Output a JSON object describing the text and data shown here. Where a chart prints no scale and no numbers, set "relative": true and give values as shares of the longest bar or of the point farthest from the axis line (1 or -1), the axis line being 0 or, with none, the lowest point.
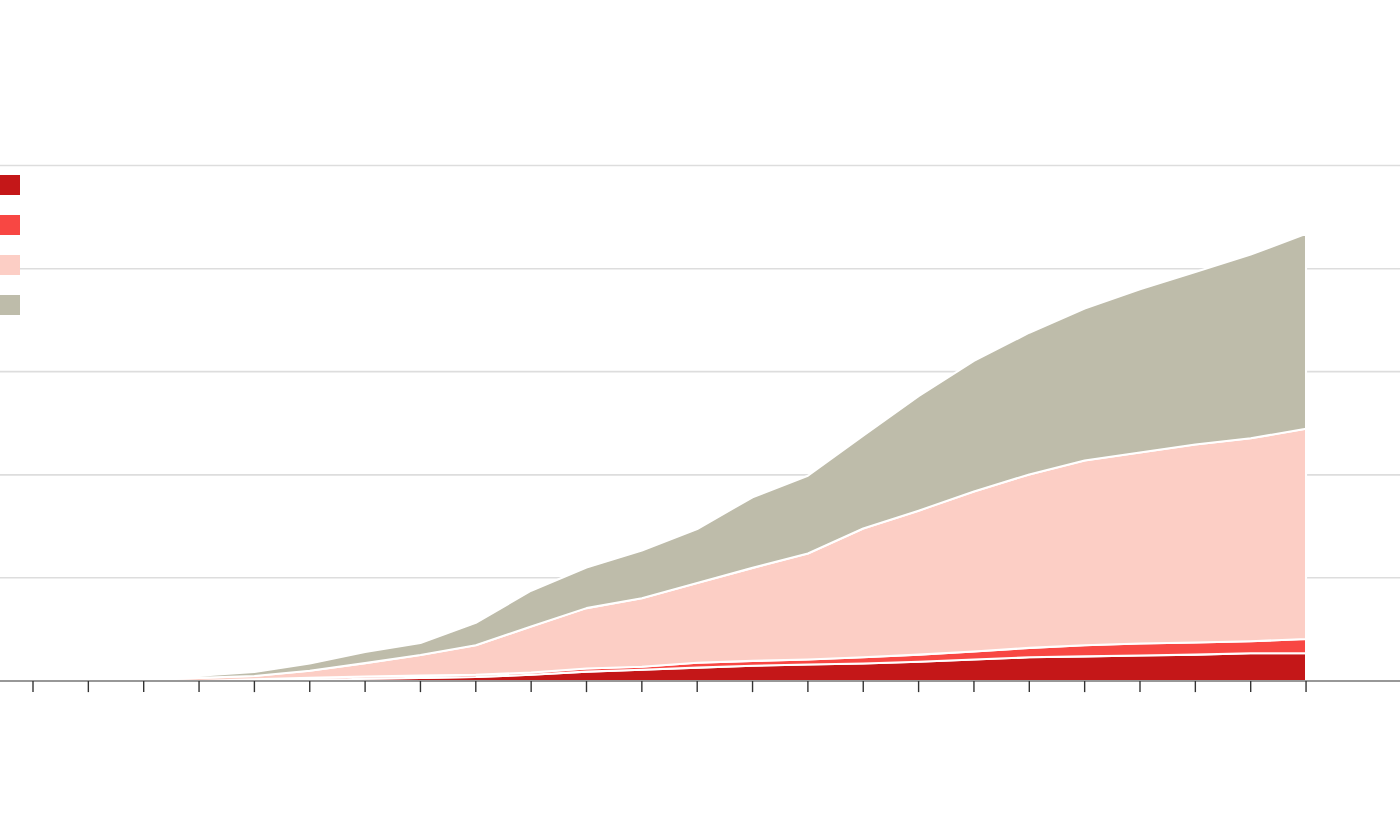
{
  "chart_data": {
    "type": "area",
    "stacked": true,
    "relative": true,
    "grid": false,
    "categories": [
      null,
      null,
      null,
      null,
      null,
      null,
      null,
      null,
      null,
      null,
      null,
      null,
      null,
      null,
      null,
      null,
      null,
      null,
      null,
      null,
      null,
      null,
      null,
      null
    ],
    "series": [
      {
        "color": "#c41718",
        "values": [
          null,
          0,
          0,
          0,
          0.002,
          0.002,
          0.005,
          0.007,
          0.009,
          0.014,
          0.021,
          0.025,
          0.03,
          0.034,
          0.037,
          0.039,
          0.043,
          0.048,
          0.053,
          0.055,
          0.057,
          0.059,
          0.062,
          0.062
        ]
      },
      {
        "color": "#f84743",
        "values": [
          null,
          0,
          0,
          0,
          0.002,
          0.005,
          0.005,
          0.005,
          0.005,
          0.005,
          0.007,
          0.007,
          0.011,
          0.011,
          0.011,
          0.014,
          0.016,
          0.018,
          0.021,
          0.025,
          0.027,
          0.027,
          0.027,
          0.032
        ]
      },
      {
        "color": "#fccec5",
        "values": [
          null,
          0,
          0.002,
          0.007,
          0.007,
          0.016,
          0.03,
          0.046,
          0.066,
          0.103,
          0.135,
          0.153,
          0.178,
          0.208,
          0.237,
          0.288,
          0.322,
          0.358,
          0.388,
          0.413,
          0.427,
          0.443,
          0.454,
          0.47
        ]
      },
      {
        "color": "#bebcaa",
        "values": [
          null,
          0,
          0.002,
          0.005,
          0.009,
          0.016,
          0.025,
          0.027,
          0.05,
          0.08,
          0.091,
          0.107,
          0.121,
          0.158,
          0.174,
          0.208,
          0.256,
          0.292,
          0.317,
          0.34,
          0.365,
          0.386,
          0.411,
          0.436
        ]
      }
    ],
    "ref_lines": [
      {
        "axis": "y",
        "value": 0.231,
        "color": "#dddddd"
      },
      {
        "axis": "y",
        "value": 0.461,
        "color": "#dddddd"
      },
      {
        "axis": "y",
        "value": 0.692,
        "color": "#dddddd"
      },
      {
        "axis": "y",
        "value": 0.922,
        "color": "#dddddd"
      },
      {
        "axis": "y",
        "value": 1.153,
        "color": "#dddddd"
      }
    ]
  }
}
